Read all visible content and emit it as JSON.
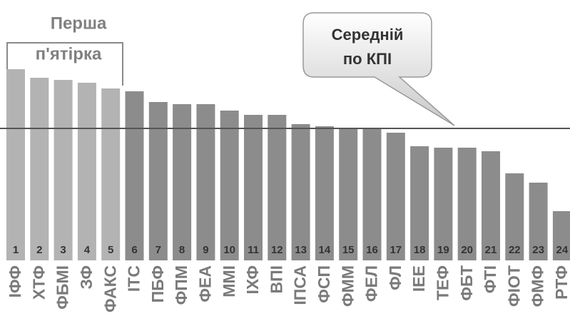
{
  "chart_data": {
    "type": "bar",
    "annotations": {
      "group_top": "Перша",
      "group_bottom": "п'ятірка",
      "callout_top": "Середній",
      "callout_bottom": "по КПІ"
    },
    "categories": [
      "ІФФ",
      "ХТФ",
      "ФБМІ",
      "ЗФ",
      "ФАКС",
      "ІТС",
      "ПБФ",
      "ФПМ",
      "ФЕА",
      "ММІ",
      "ІХФ",
      "ВПІ",
      "ІПСА",
      "ФСП",
      "ФММ",
      "ФЕЛ",
      "ФЛ",
      "ІЕЕ",
      "ТЕФ",
      "ФБТ",
      "ФТІ",
      "ФІОТ",
      "ФМФ",
      "РТФ"
    ],
    "ranks": [
      1,
      2,
      3,
      4,
      5,
      6,
      7,
      8,
      9,
      10,
      11,
      12,
      13,
      14,
      15,
      16,
      17,
      18,
      19,
      20,
      21,
      22,
      23,
      24
    ],
    "values": [
      268,
      256,
      253,
      249,
      241,
      237,
      222,
      219,
      219,
      210,
      204,
      204,
      191,
      188,
      185,
      184,
      179,
      160,
      158,
      158,
      153,
      122,
      109,
      69
    ],
    "average": 185,
    "highlight_count": 5,
    "colors": {
      "highlight": "#b3b3b3",
      "bar": "#8c8c8c",
      "average": "#555555"
    },
    "ylim": [
      0,
      300
    ]
  }
}
